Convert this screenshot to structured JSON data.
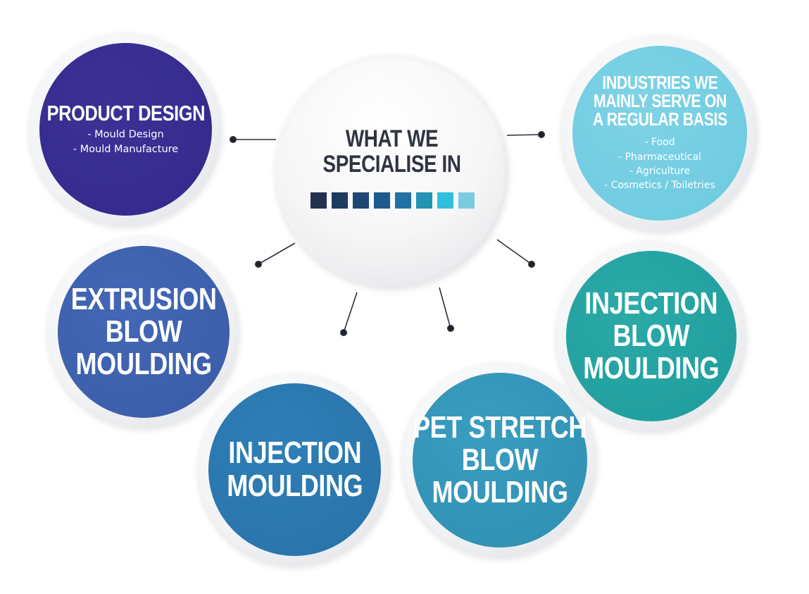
{
  "center": {
    "title_lines": [
      "WHAT WE",
      "SPECIALISE IN"
    ],
    "swatch_colors": [
      "#23314f",
      "#1d3a5f",
      "#1f4773",
      "#1d5b8e",
      "#2171a3",
      "#2194b4",
      "#2fc0dd",
      "#79cce0"
    ]
  },
  "nodes": {
    "product_design": {
      "title": "PRODUCT DESIGN",
      "items": [
        "- Mould Design",
        "- Mould Manufacture"
      ],
      "color": "#35298c"
    },
    "industries": {
      "title_lines": [
        "INDUSTRIES WE",
        "MAINLY SERVE ON",
        "A REGULAR BASIS"
      ],
      "items": [
        "- Food",
        "- Pharmaceutical",
        "- Agriculture",
        "- Cosmetics / Toiletries"
      ],
      "color": "#72cbe1"
    },
    "extrusion_blow_moulding": {
      "title_lines": [
        "EXTRUSION",
        "BLOW",
        "MOULDING"
      ],
      "color": "#3d60ad"
    },
    "injection_blow_moulding": {
      "title_lines": [
        "INJECTION",
        "BLOW",
        "MOULDING"
      ],
      "color": "#22a0a0"
    },
    "injection_moulding": {
      "title_lines": [
        "INJECTION",
        "MOULDING"
      ],
      "color": "#2b76ad"
    },
    "pet_stretch_blow_moulding": {
      "title_lines": [
        "PET STRETCH",
        "BLOW",
        "MOULDING"
      ],
      "color": "#3395b7"
    }
  }
}
